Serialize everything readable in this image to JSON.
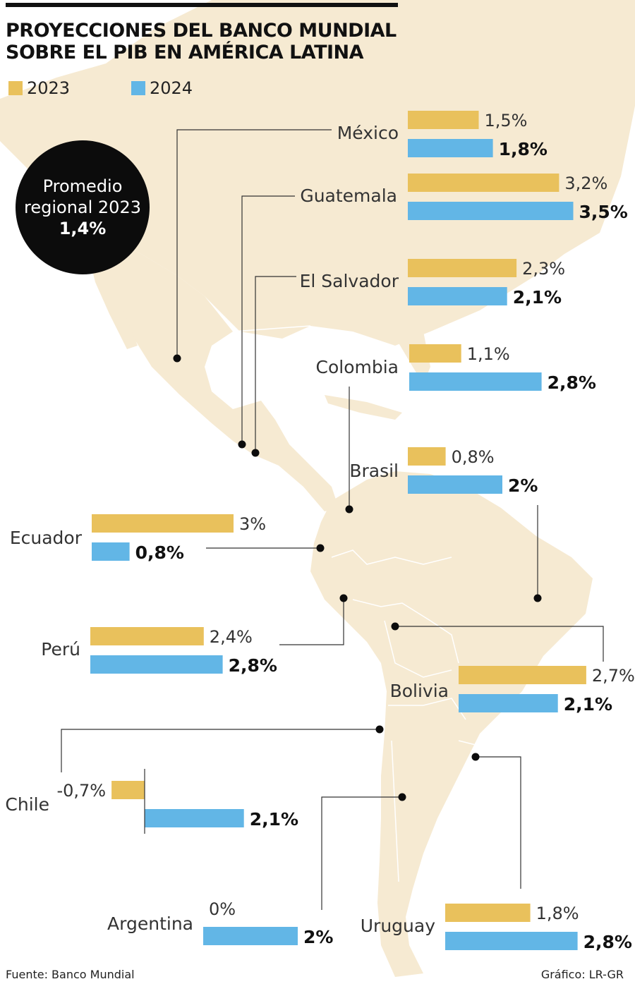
{
  "title": "PROYECCIONES DEL BANCO MUNDIAL SOBRE EL PIB EN AMÉRICA LATINA",
  "colors": {
    "y2023": "#e9c15c",
    "y2024": "#62b6e6",
    "map": "#f6ead2",
    "text": "#1a1a1a"
  },
  "legend": [
    {
      "label": "2023",
      "color": "#e9c15c"
    },
    {
      "label": "2024",
      "color": "#62b6e6"
    }
  ],
  "badge": {
    "line1": "Promedio",
    "line2": "regional 2023",
    "value": "1,4%"
  },
  "chart_data": {
    "type": "bar",
    "series": [
      {
        "name": "2023",
        "values": [
          1.5,
          3.2,
          2.3,
          1.1,
          0.8,
          3,
          2.4,
          2.7,
          -0.7,
          0,
          1.8
        ]
      },
      {
        "name": "2024",
        "values": [
          1.8,
          3.5,
          2.1,
          2.8,
          2,
          0.8,
          2.8,
          2.1,
          2.1,
          2,
          2.8
        ]
      }
    ],
    "countries": [
      {
        "name": "México",
        "v2023": 1.5,
        "label2023": "1,5%",
        "v2024": 1.8,
        "label2024": "1,8%"
      },
      {
        "name": "Guatemala",
        "v2023": 3.2,
        "label2023": "3,2%",
        "v2024": 3.5,
        "label2024": "3,5%"
      },
      {
        "name": "El Salvador",
        "v2023": 2.3,
        "label2023": "2,3%",
        "v2024": 2.1,
        "label2024": "2,1%"
      },
      {
        "name": "Colombia",
        "v2023": 1.1,
        "label2023": "1,1%",
        "v2024": 2.8,
        "label2024": "2,8%"
      },
      {
        "name": "Brasil",
        "v2023": 0.8,
        "label2023": "0,8%",
        "v2024": 2,
        "label2024": "2%"
      },
      {
        "name": "Ecuador",
        "v2023": 3,
        "label2023": "3%",
        "v2024": 0.8,
        "label2024": "0,8%"
      },
      {
        "name": "Perú",
        "v2023": 2.4,
        "label2023": "2,4%",
        "v2024": 2.8,
        "label2024": "2,8%"
      },
      {
        "name": "Bolivia",
        "v2023": 2.7,
        "label2023": "2,7%",
        "v2024": 2.1,
        "label2024": "2,1%"
      },
      {
        "name": "Chile",
        "v2023": -0.7,
        "label2023": "-0,7%",
        "v2024": 2.1,
        "label2024": "2,1%"
      },
      {
        "name": "Argentina",
        "v2023": 0,
        "label2023": "0%",
        "v2024": 2,
        "label2024": "2%"
      },
      {
        "name": "Uruguay",
        "v2023": 1.8,
        "label2023": "1,8%",
        "v2024": 2.8,
        "label2024": "2,8%"
      }
    ]
  },
  "footer": {
    "source": "Fuente: Banco Mundial",
    "credit": "Gráfico: LR-GR"
  }
}
